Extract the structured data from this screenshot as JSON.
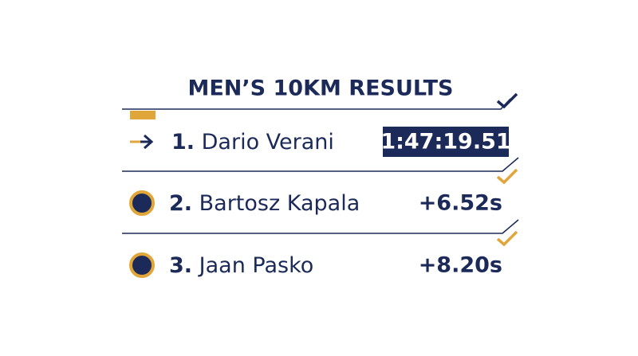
{
  "header": {
    "title": "MEN’S 10KM RESULTS"
  },
  "results": [
    {
      "rank": "1.",
      "name": "Dario Verani",
      "time": "1:47:19.51"
    },
    {
      "rank": "2.",
      "name": "Bartosz Kapala",
      "time": "+6.52s"
    },
    {
      "rank": "3.",
      "name": "Jaan Pasko",
      "time": "+8.20s"
    }
  ]
}
